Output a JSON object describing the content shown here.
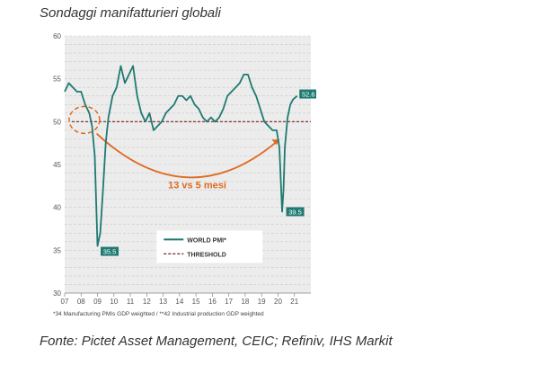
{
  "header": {
    "caption": "Sondaggi manifatturieri globali"
  },
  "footer": {
    "source": "Fonte: Pictet Asset Management, CEIC; Refiniv, IHS Markit"
  },
  "colors": {
    "pmi": "#1e7a72",
    "threshold": "#7a1f1f",
    "annotation": "#e06a1f",
    "grid": "#c9c9c9",
    "chart_bg": "#ececec"
  },
  "chart_data": {
    "type": "line",
    "ylim": [
      30,
      60
    ],
    "yticks": [
      30,
      35,
      40,
      45,
      50,
      55,
      60
    ],
    "xlim": [
      2007,
      2022
    ],
    "xticks": [
      "07",
      "08",
      "09",
      "10",
      "11",
      "12",
      "13",
      "14",
      "15",
      "16",
      "17",
      "18",
      "19",
      "20",
      "21"
    ],
    "grid": true,
    "legend_position": "bottom-right",
    "footnote": "*34 Manufacturing PMIs GDP weighted / **42 Industrial production GDP weighted",
    "annotation_text": "13 vs 5 mesi",
    "threshold": {
      "name": "THRESHOLD",
      "value": 50
    },
    "series": [
      {
        "name": "WORLD PMI*",
        "x": [
          "2007-01",
          "2007-04",
          "2007-07",
          "2007-10",
          "2008-01",
          "2008-04",
          "2008-07",
          "2008-09",
          "2008-11",
          "2009-01",
          "2009-03",
          "2009-05",
          "2009-07",
          "2009-09",
          "2009-12",
          "2010-03",
          "2010-06",
          "2010-09",
          "2010-12",
          "2011-03",
          "2011-06",
          "2011-09",
          "2011-12",
          "2012-03",
          "2012-06",
          "2012-09",
          "2012-12",
          "2013-03",
          "2013-06",
          "2013-09",
          "2013-12",
          "2014-03",
          "2014-06",
          "2014-09",
          "2014-12",
          "2015-03",
          "2015-06",
          "2015-09",
          "2015-12",
          "2016-03",
          "2016-06",
          "2016-09",
          "2016-12",
          "2017-03",
          "2017-06",
          "2017-09",
          "2017-12",
          "2018-03",
          "2018-06",
          "2018-09",
          "2018-12",
          "2019-03",
          "2019-06",
          "2019-09",
          "2019-12",
          "2020-02",
          "2020-04",
          "2020-05",
          "2020-06",
          "2020-08",
          "2020-10",
          "2020-12",
          "2021-03"
        ],
        "values": [
          53.5,
          54.5,
          54,
          53.5,
          53.5,
          52,
          51,
          49.5,
          46,
          35.5,
          37,
          42,
          47.5,
          50.5,
          53,
          54,
          56.5,
          54.5,
          55.5,
          56.5,
          53,
          51,
          50,
          51,
          49,
          49.5,
          50,
          51,
          51.5,
          52,
          53,
          53,
          52.5,
          53,
          52,
          51.5,
          50.5,
          50,
          50.5,
          50,
          50.5,
          51.5,
          53,
          53.5,
          54,
          54.5,
          55.5,
          55.5,
          54,
          53,
          51.5,
          50,
          49.5,
          49,
          49,
          47,
          39.5,
          42,
          47,
          50.5,
          52,
          52.6,
          53
        ]
      }
    ],
    "labels": [
      {
        "text": "52.6",
        "x": "2021-02",
        "value": 52.6
      },
      {
        "text": "39.5",
        "x": "2020-05",
        "value": 39.5
      },
      {
        "text": "35.5",
        "x": "2009-02",
        "value": 35.5
      }
    ]
  }
}
